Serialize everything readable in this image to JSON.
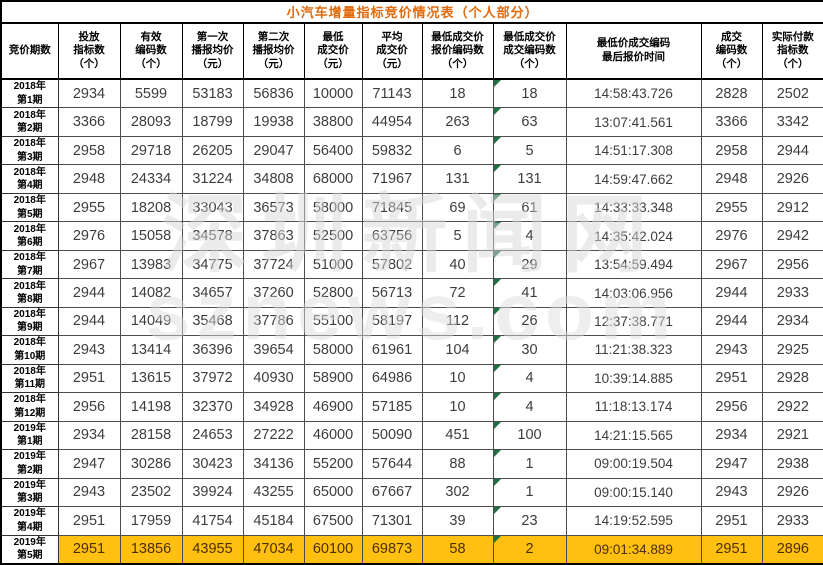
{
  "title": "小汽车增量指标竞价情况表（个人部分）",
  "watermark": {
    "line1": "深圳新闻网",
    "line2": "sznews.com"
  },
  "colors": {
    "title_text": "#e06a0c",
    "highlight_bg": "#ffc011",
    "highlight_text": "#4a2f00",
    "triangle_green": "#1e7145",
    "header_text": "#000000",
    "cell_text": "#3d3d3d"
  },
  "table": {
    "row_header_label": "竞价期数",
    "columns": [
      {
        "label": "投放\n指标数\n（个）"
      },
      {
        "label": "有效\n编码数\n（个）"
      },
      {
        "label": "第一次\n播报均价\n（元）"
      },
      {
        "label": "第二次\n播报均价\n（元）"
      },
      {
        "label": "最低\n成交价\n（元）"
      },
      {
        "label": "平均\n成交价\n（元）"
      },
      {
        "label": "最低成交价\n报价编码数\n（个）"
      },
      {
        "label": "最低成交价\n成交编码数\n（个）"
      },
      {
        "label": "最低价成交编码\n最后报价时间"
      },
      {
        "label": "成交\n编码数\n（个）"
      },
      {
        "label": "实际付款\n指标数\n（个）"
      }
    ],
    "rows": [
      {
        "year": "2018年",
        "term": "第1期",
        "values": [
          "2934",
          "5599",
          "53183",
          "56836",
          "10000",
          "71143",
          "18",
          "18",
          "14:58:43.726",
          "2828",
          "2502"
        ],
        "highlight": false
      },
      {
        "year": "2018年",
        "term": "第2期",
        "values": [
          "3366",
          "28093",
          "18799",
          "19938",
          "38800",
          "44954",
          "263",
          "63",
          "13:07:41.561",
          "3366",
          "3342"
        ],
        "highlight": false
      },
      {
        "year": "2018年",
        "term": "第3期",
        "values": [
          "2958",
          "29718",
          "26205",
          "29047",
          "56400",
          "59832",
          "6",
          "5",
          "14:51:17.308",
          "2958",
          "2944"
        ],
        "highlight": false
      },
      {
        "year": "2018年",
        "term": "第4期",
        "values": [
          "2948",
          "24334",
          "31224",
          "34808",
          "68000",
          "71967",
          "131",
          "131",
          "14:59:47.662",
          "2948",
          "2926"
        ],
        "highlight": false
      },
      {
        "year": "2018年",
        "term": "第5期",
        "values": [
          "2955",
          "18208",
          "33043",
          "36573",
          "58000",
          "71845",
          "69",
          "61",
          "14:33:33.348",
          "2955",
          "2912"
        ],
        "highlight": false
      },
      {
        "year": "2018年",
        "term": "第6期",
        "values": [
          "2976",
          "15058",
          "34578",
          "37863",
          "52500",
          "63756",
          "5",
          "4",
          "14:35:42.024",
          "2976",
          "2942"
        ],
        "highlight": false
      },
      {
        "year": "2018年",
        "term": "第7期",
        "values": [
          "2967",
          "13983",
          "34775",
          "37724",
          "51000",
          "57802",
          "40",
          "29",
          "13:54:59.494",
          "2967",
          "2956"
        ],
        "highlight": false
      },
      {
        "year": "2018年",
        "term": "第8期",
        "values": [
          "2944",
          "14082",
          "34657",
          "37260",
          "52800",
          "56713",
          "72",
          "41",
          "14:03:06.956",
          "2944",
          "2933"
        ],
        "highlight": false
      },
      {
        "year": "2018年",
        "term": "第9期",
        "values": [
          "2944",
          "14049",
          "35468",
          "37786",
          "55100",
          "58197",
          "112",
          "26",
          "12:37:38.771",
          "2944",
          "2934"
        ],
        "highlight": false
      },
      {
        "year": "2018年",
        "term": "第10期",
        "values": [
          "2943",
          "13414",
          "36396",
          "39654",
          "58000",
          "61961",
          "104",
          "30",
          "11:21:38.323",
          "2943",
          "2925"
        ],
        "highlight": false
      },
      {
        "year": "2018年",
        "term": "第11期",
        "values": [
          "2951",
          "13615",
          "37972",
          "40930",
          "58900",
          "64986",
          "10",
          "4",
          "10:39:14.885",
          "2951",
          "2928"
        ],
        "highlight": false
      },
      {
        "year": "2018年",
        "term": "第12期",
        "values": [
          "2956",
          "14198",
          "32370",
          "34928",
          "46900",
          "57185",
          "10",
          "4",
          "11:18:13.174",
          "2956",
          "2922"
        ],
        "highlight": false
      },
      {
        "year": "2019年",
        "term": "第1期",
        "values": [
          "2934",
          "28158",
          "24653",
          "27222",
          "46000",
          "50090",
          "451",
          "100",
          "14:21:15.565",
          "2934",
          "2921"
        ],
        "highlight": false
      },
      {
        "year": "2019年",
        "term": "第2期",
        "values": [
          "2947",
          "30286",
          "30423",
          "34136",
          "55200",
          "57644",
          "88",
          "1",
          "09:00:19.504",
          "2947",
          "2938"
        ],
        "highlight": false
      },
      {
        "year": "2019年",
        "term": "第3期",
        "values": [
          "2943",
          "23502",
          "39924",
          "43255",
          "65000",
          "67667",
          "302",
          "1",
          "09:00:15.140",
          "2943",
          "2926"
        ],
        "highlight": false
      },
      {
        "year": "2019年",
        "term": "第4期",
        "values": [
          "2951",
          "17959",
          "41754",
          "45184",
          "67500",
          "71301",
          "39",
          "23",
          "14:19:52.595",
          "2951",
          "2933"
        ],
        "highlight": false
      },
      {
        "year": "2019年",
        "term": "第5期",
        "values": [
          "2951",
          "13856",
          "43955",
          "47034",
          "60100",
          "69873",
          "58",
          "2",
          "09:01:34.889",
          "2951",
          "2896"
        ],
        "highlight": true
      }
    ]
  }
}
